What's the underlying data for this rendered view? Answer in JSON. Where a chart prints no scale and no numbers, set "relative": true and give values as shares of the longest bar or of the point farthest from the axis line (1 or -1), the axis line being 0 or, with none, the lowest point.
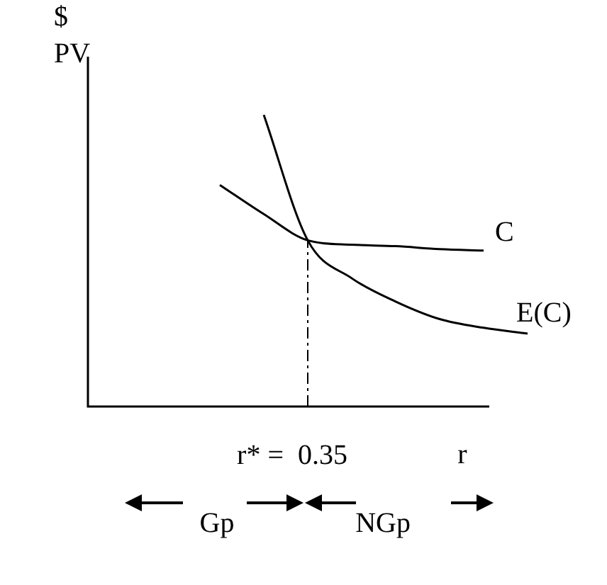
{
  "chart_data": {
    "type": "line",
    "relative": true,
    "ylabel": "$ PV",
    "xlabel": "r",
    "categories": [
      null,
      null,
      null,
      null,
      null,
      null,
      null,
      null,
      null,
      null,
      null
    ],
    "tick_labels": false,
    "legend": false,
    "marker": "none",
    "line_style": "solid",
    "series": [
      {
        "name": "C",
        "color": "#000000",
        "values": [
          null,
          null,
          null,
          0.76,
          0.66,
          0.57,
          0.555,
          0.55,
          0.54,
          0.535,
          null
        ]
      },
      {
        "name": "E(C)",
        "color": "#000000",
        "values": [
          null,
          null,
          null,
          null,
          1.0,
          0.57,
          0.44,
          0.36,
          0.3,
          0.27,
          0.25
        ]
      }
    ],
    "annotations": [
      "r* =  0.35",
      "Gp",
      "NGp"
    ]
  }
}
